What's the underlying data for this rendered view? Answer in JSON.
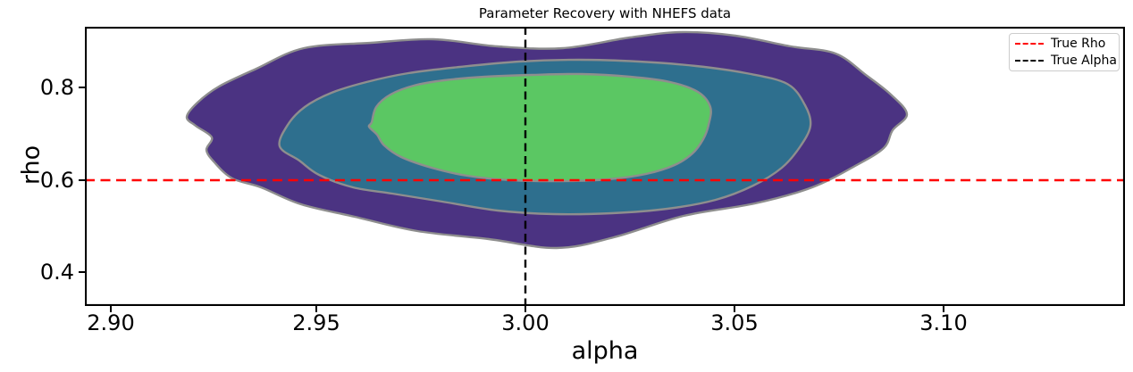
{
  "figure": {
    "title": "Parameter Recovery with NHEFS data",
    "xlabel": "alpha",
    "ylabel": "rho"
  },
  "axes": {
    "x_tick_labels": [
      "2.90",
      "2.95",
      "3.00",
      "3.05",
      "3.10"
    ],
    "y_tick_labels": [
      "0.8",
      "0.6",
      "0.4"
    ]
  },
  "legend": {
    "items": [
      {
        "label": "True Rho",
        "color": "#ff0000",
        "linestyle": "dashed"
      },
      {
        "label": "True Alpha",
        "color": "#000000",
        "linestyle": "dashed"
      }
    ]
  },
  "colors": {
    "contour_outer": "#4b3382",
    "contour_middle": "#2e6f8e",
    "contour_inner": "#5bc763",
    "contour_edge": "#8e8e8e",
    "true_rho_line": "#ff0000",
    "true_alpha_line": "#000000",
    "spine": "#000000"
  },
  "chart_data": {
    "type": "heatmap",
    "subtype": "filled-kde-contour",
    "title": "Parameter Recovery with NHEFS data",
    "xlabel": "alpha",
    "ylabel": "rho",
    "xlim": [
      2.893,
      3.143
    ],
    "ylim": [
      0.33,
      0.93
    ],
    "x_ticks": [
      2.9,
      2.95,
      3.0,
      3.05,
      3.1
    ],
    "y_ticks": [
      0.8,
      0.6,
      0.4
    ],
    "grid": false,
    "legend_position": "upper right",
    "density_center": {
      "alpha": 3.005,
      "rho": 0.7
    },
    "contour_levels": [
      {
        "level": "outer",
        "fill": "#4b3382",
        "alpha_range": [
          2.918,
          3.09
        ],
        "rho_range": [
          0.445,
          0.915
        ]
      },
      {
        "level": "middle",
        "fill": "#2e6f8e",
        "alpha_range": [
          2.94,
          3.067
        ],
        "rho_range": [
          0.52,
          0.86
        ]
      },
      {
        "level": "inner",
        "fill": "#5bc763",
        "alpha_range": [
          2.963,
          3.043
        ],
        "rho_range": [
          0.595,
          0.815
        ]
      }
    ],
    "reference_lines": [
      {
        "label": "True Rho",
        "orientation": "horizontal",
        "value": 0.6,
        "color": "#ff0000",
        "linestyle": "dashed"
      },
      {
        "label": "True Alpha",
        "orientation": "vertical",
        "value": 3.0,
        "color": "#000000",
        "linestyle": "dashed"
      }
    ]
  }
}
